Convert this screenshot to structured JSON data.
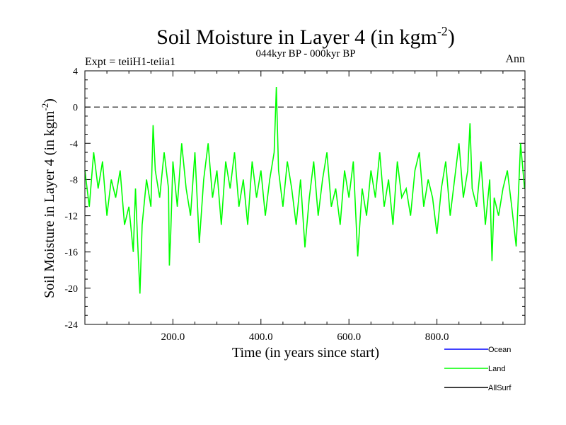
{
  "chart_data": {
    "type": "line",
    "title": "Soil Moisture in Layer 4 (in kgm",
    "title_sup": "-2",
    "title_end": ")",
    "subtitle_left": "Expt = teiiH1-teiia1",
    "subtitle_center": "044kyr BP - 000kyr BP",
    "subtitle_right": "Ann",
    "xlabel": "Time (in years since start)",
    "ylabel": "Soil Moisture in Layer 4 (in kgm",
    "ylabel_sup": "-2",
    "ylabel_end": ")",
    "xlim": [
      0,
      1000
    ],
    "ylim": [
      -24,
      4
    ],
    "x_ticks": [
      200,
      400,
      600,
      800
    ],
    "x_tick_labels": [
      "200.0",
      "400.0",
      "600.0",
      "800.0"
    ],
    "y_ticks": [
      4,
      0,
      -4,
      -8,
      -12,
      -16,
      -20,
      -24
    ],
    "y_tick_labels": [
      "4",
      "0",
      "-4",
      "-8",
      "-12",
      "-16",
      "-20",
      "-24"
    ],
    "reference_line": 0,
    "series": [
      {
        "name": "Land",
        "color": "#00ff00",
        "x": [
          0,
          10,
          20,
          30,
          40,
          50,
          60,
          70,
          80,
          90,
          100,
          110,
          115,
          120,
          125,
          130,
          140,
          150,
          155,
          160,
          170,
          180,
          190,
          192,
          195,
          200,
          210,
          220,
          230,
          240,
          250,
          260,
          270,
          280,
          290,
          300,
          310,
          320,
          330,
          340,
          350,
          360,
          370,
          380,
          390,
          400,
          410,
          420,
          430,
          435,
          440,
          450,
          460,
          470,
          480,
          490,
          500,
          510,
          520,
          530,
          540,
          550,
          560,
          570,
          580,
          590,
          600,
          610,
          620,
          630,
          640,
          650,
          660,
          670,
          680,
          690,
          700,
          710,
          720,
          730,
          740,
          750,
          760,
          770,
          780,
          790,
          800,
          810,
          820,
          830,
          840,
          850,
          860,
          870,
          875,
          880,
          890,
          900,
          910,
          920,
          925,
          930,
          940,
          950,
          960,
          970,
          980,
          990,
          999
        ],
        "y": [
          -7,
          -11,
          -5,
          -9,
          -6,
          -12,
          -8,
          -10,
          -7,
          -13,
          -11,
          -16,
          -9,
          -15,
          -20.6,
          -13,
          -8,
          -11,
          -2,
          -7,
          -10,
          -5,
          -9,
          -17.5,
          -14,
          -6,
          -11,
          -4,
          -9,
          -12,
          -5,
          -15,
          -8,
          -4,
          -10,
          -7,
          -13,
          -6,
          -9,
          -5,
          -11,
          -8,
          -13,
          -6,
          -10,
          -7,
          -12,
          -8,
          -5,
          2.2,
          -7,
          -11,
          -6,
          -9,
          -13,
          -8,
          -15.5,
          -10,
          -6,
          -12,
          -8,
          -5,
          -11,
          -9,
          -13,
          -7,
          -10,
          -6,
          -16.5,
          -9,
          -12,
          -7,
          -10,
          -5,
          -11,
          -8,
          -13,
          -6,
          -10,
          -9,
          -12,
          -7,
          -5,
          -11,
          -8,
          -10,
          -14,
          -9,
          -6,
          -12,
          -8,
          -4,
          -10,
          -7,
          -1.8,
          -9,
          -11,
          -6,
          -13,
          -8,
          -17,
          -10,
          -12,
          -9,
          -7,
          -11,
          -15.4,
          -4,
          -9
        ]
      }
    ],
    "legend": [
      {
        "label": "Ocean",
        "color": "#0000ff"
      },
      {
        "label": "Land",
        "color": "#00ff00"
      },
      {
        "label": "AllSurf",
        "color": "#000000"
      }
    ],
    "legend_position": "bottom-right"
  }
}
